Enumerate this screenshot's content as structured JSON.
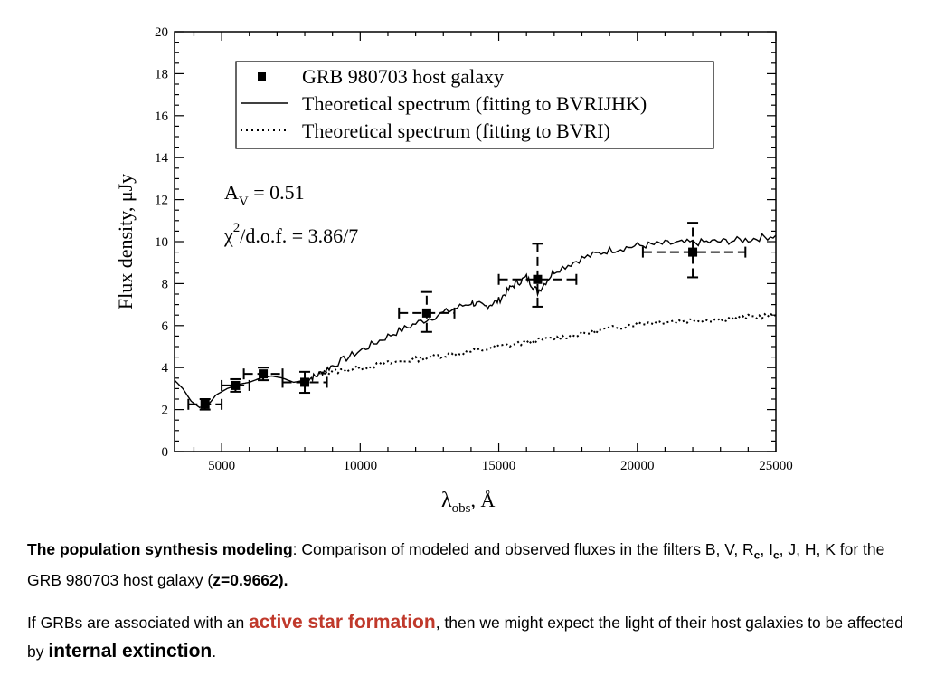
{
  "chart_data": {
    "type": "scatter",
    "xlabel_main": "λ",
    "xlabel_sub": "obs",
    "xlabel_unit": ", Å",
    "ylabel": "Flux density, μJy",
    "xlim": [
      3300,
      25000
    ],
    "ylim": [
      0,
      20
    ],
    "xticks": [
      5000,
      10000,
      15000,
      20000,
      25000
    ],
    "yticks": [
      0,
      2,
      4,
      6,
      8,
      10,
      12,
      14,
      16,
      18,
      20
    ],
    "grid": false,
    "legend_placement": "top-right",
    "legend": [
      {
        "name": "GRB 980703 host galaxy",
        "style": "marker"
      },
      {
        "name": "Theoretical spectrum (fitting to BVRIJHK)",
        "style": "solid"
      },
      {
        "name": "Theoretical spectrum (fitting to BVRI)",
        "style": "dotted"
      }
    ],
    "annotations": {
      "av_label": "A",
      "av_sub": "V",
      "av_value": " = 0.51",
      "chi_label": "χ",
      "chi_sup": "2",
      "chi_value": "/d.o.f. = 3.86/7"
    },
    "points": [
      {
        "x": 4400,
        "y": 2.25,
        "xerr": [
          3800,
          5000
        ],
        "yerr": [
          2.0,
          2.5
        ]
      },
      {
        "x": 5500,
        "y": 3.15,
        "xerr": [
          5000,
          6000
        ],
        "yerr": [
          2.85,
          3.45
        ]
      },
      {
        "x": 6500,
        "y": 3.7,
        "xerr": [
          5800,
          7200
        ],
        "yerr": [
          3.4,
          4.0
        ]
      },
      {
        "x": 8000,
        "y": 3.3,
        "xerr": [
          7200,
          8800
        ],
        "yerr": [
          2.8,
          3.8
        ]
      },
      {
        "x": 12400,
        "y": 6.6,
        "xerr": [
          11400,
          13400
        ],
        "yerr": [
          5.7,
          7.6
        ]
      },
      {
        "x": 16400,
        "y": 8.2,
        "xerr": [
          15000,
          17800
        ],
        "yerr": [
          6.9,
          9.9
        ]
      },
      {
        "x": 22000,
        "y": 9.5,
        "xerr": [
          20200,
          23900
        ],
        "yerr": [
          8.3,
          10.9
        ]
      }
    ],
    "series_solid": {
      "x": [
        3300,
        3600,
        3900,
        4200,
        4500,
        4800,
        5200,
        5600,
        6000,
        6400,
        6800,
        7200,
        7600,
        8000,
        8400,
        9000,
        10000,
        11000,
        12000,
        13000,
        14000,
        14500,
        15000,
        15500,
        16000,
        16400,
        17000,
        18000,
        19000,
        20000,
        21000,
        22000,
        23000,
        24000,
        25000
      ],
      "y": [
        3.4,
        3.0,
        2.4,
        2.1,
        2.2,
        2.7,
        3.0,
        3.2,
        3.3,
        3.5,
        3.6,
        3.5,
        3.3,
        3.4,
        3.6,
        4.1,
        4.8,
        5.5,
        6.1,
        6.6,
        7.1,
        6.9,
        7.2,
        7.9,
        8.3,
        7.6,
        8.6,
        9.2,
        9.6,
        9.8,
        9.9,
        9.95,
        10.0,
        10.1,
        10.3
      ]
    },
    "series_dotted": {
      "x": [
        8500,
        9000,
        10000,
        11000,
        12000,
        13000,
        14000,
        15000,
        16000,
        17000,
        18000,
        19000,
        20000,
        21000,
        22000,
        23000,
        24000,
        25000
      ],
      "y": [
        3.7,
        3.8,
        4.0,
        4.2,
        4.4,
        4.6,
        4.75,
        5.0,
        5.2,
        5.4,
        5.6,
        5.85,
        6.1,
        6.2,
        6.25,
        6.3,
        6.4,
        6.5
      ]
    }
  },
  "caption": {
    "p1_bold": "The population synthesis modeling",
    "p1_a": ": Comparison of modeled and observed fluxes in the filters B, V, R",
    "p1_sub1": "c",
    "p1_b": ", I",
    "p1_sub2": "c",
    "p1_c": ", J, H, K for the GRB 980703 host galaxy (",
    "p1_z": "z=0.9662).",
    "p2_a": "If GRBs are associated with an ",
    "p2_hl": "active star formation",
    "p2_b": ", then we might expect the light of their host galaxies to be affected by ",
    "p2_big": "internal extinction",
    "p2_c": "."
  }
}
